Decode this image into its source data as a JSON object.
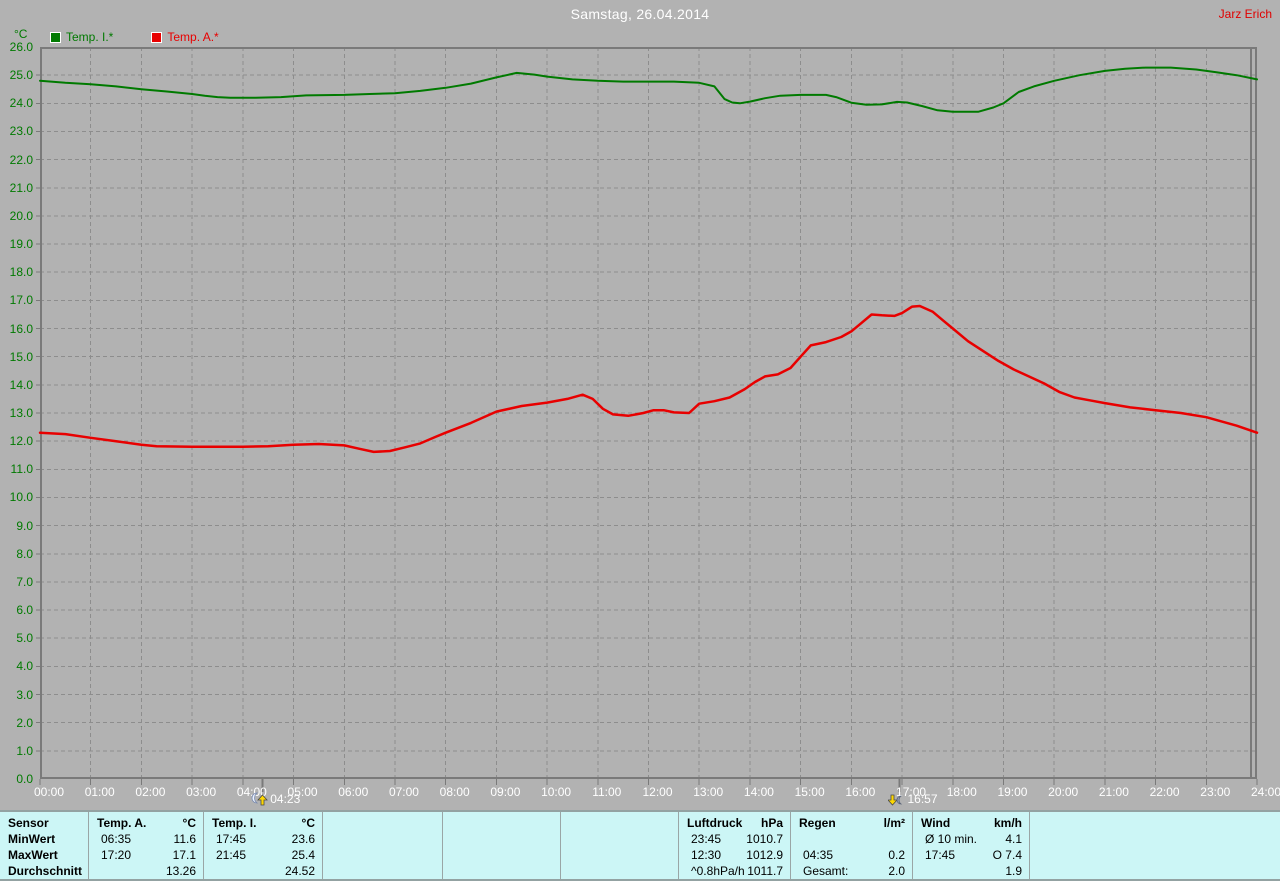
{
  "header": {
    "title": "Samstag, 26.04.2014",
    "owner": "Jarz Erich"
  },
  "colors": {
    "background": "#b2b2b2",
    "table_background": "#ccf6f6",
    "grid": "#8d8d8d",
    "axis_border": "#7a7a7a",
    "title_text": "#ffffff",
    "owner_text": "#e00000",
    "axis_label_green": "#007a00"
  },
  "chart_data": {
    "type": "line",
    "title": "Samstag, 26.04.2014",
    "ylabel": "°C",
    "xlabel": "",
    "ylim": [
      0,
      26
    ],
    "xlim_hours": [
      0,
      24
    ],
    "grid": true,
    "legend_position": "top-left",
    "y_tick_labels": [
      "0.0",
      "1.0",
      "2.0",
      "3.0",
      "4.0",
      "5.0",
      "6.0",
      "7.0",
      "8.0",
      "9.0",
      "10.0",
      "11.0",
      "12.0",
      "13.0",
      "14.0",
      "15.0",
      "16.0",
      "17.0",
      "18.0",
      "19.0",
      "20.0",
      "21.0",
      "22.0",
      "23.0",
      "24.0",
      "25.0",
      "26.0"
    ],
    "x_tick_labels": [
      "00:00",
      "01:00",
      "02:00",
      "03:00",
      "04:00",
      "05:00",
      "06:00",
      "07:00",
      "08:00",
      "09:00",
      "10:00",
      "11:00",
      "12:00",
      "13:00",
      "14:00",
      "15:00",
      "16:00",
      "17:00",
      "18:00",
      "19:00",
      "20:00",
      "21:00",
      "22:00",
      "23:00",
      "24:00"
    ],
    "event_markers": [
      {
        "label": "04:23",
        "hour": 4.383,
        "icon": "moonrise"
      },
      {
        "label": "16:57",
        "hour": 16.95,
        "icon": "moonset"
      }
    ],
    "series": [
      {
        "label": "Temp. I.*",
        "color": "#007a00",
        "points": [
          [
            0,
            24.8
          ],
          [
            0.5,
            24.73
          ],
          [
            1,
            24.68
          ],
          [
            1.5,
            24.6
          ],
          [
            2,
            24.5
          ],
          [
            2.5,
            24.42
          ],
          [
            3,
            24.33
          ],
          [
            3.25,
            24.27
          ],
          [
            3.5,
            24.22
          ],
          [
            3.75,
            24.2
          ],
          [
            4.25,
            24.2
          ],
          [
            4.75,
            24.22
          ],
          [
            5.25,
            24.28
          ],
          [
            6,
            24.3
          ],
          [
            6.5,
            24.33
          ],
          [
            7,
            24.36
          ],
          [
            7.5,
            24.44
          ],
          [
            8,
            24.55
          ],
          [
            8.5,
            24.7
          ],
          [
            9,
            24.92
          ],
          [
            9.4,
            25.08
          ],
          [
            9.75,
            25.02
          ],
          [
            10,
            24.95
          ],
          [
            10.5,
            24.85
          ],
          [
            11,
            24.8
          ],
          [
            11.5,
            24.77
          ],
          [
            12.5,
            24.77
          ],
          [
            13,
            24.73
          ],
          [
            13.3,
            24.6
          ],
          [
            13.5,
            24.15
          ],
          [
            13.65,
            24.03
          ],
          [
            13.8,
            24.0
          ],
          [
            14,
            24.06
          ],
          [
            14.3,
            24.18
          ],
          [
            14.6,
            24.27
          ],
          [
            15,
            24.3
          ],
          [
            15.5,
            24.3
          ],
          [
            15.7,
            24.22
          ],
          [
            16,
            24.02
          ],
          [
            16.3,
            23.95
          ],
          [
            16.6,
            23.96
          ],
          [
            16.9,
            24.05
          ],
          [
            17.1,
            24.03
          ],
          [
            17.4,
            23.9
          ],
          [
            17.7,
            23.75
          ],
          [
            18,
            23.7
          ],
          [
            18.5,
            23.7
          ],
          [
            18.8,
            23.85
          ],
          [
            19,
            24.0
          ],
          [
            19.3,
            24.4
          ],
          [
            19.6,
            24.6
          ],
          [
            20,
            24.8
          ],
          [
            20.5,
            25.0
          ],
          [
            21,
            25.15
          ],
          [
            21.4,
            25.23
          ],
          [
            21.8,
            25.27
          ],
          [
            22.3,
            25.27
          ],
          [
            22.8,
            25.2
          ],
          [
            23.2,
            25.1
          ],
          [
            23.6,
            25.0
          ],
          [
            24,
            24.85
          ]
        ]
      },
      {
        "label": "Temp. A.*",
        "color": "#e80000",
        "points": [
          [
            0,
            12.3
          ],
          [
            0.5,
            12.25
          ],
          [
            1,
            12.12
          ],
          [
            1.5,
            12.0
          ],
          [
            2,
            11.87
          ],
          [
            2.3,
            11.82
          ],
          [
            3,
            11.8
          ],
          [
            4,
            11.8
          ],
          [
            4.5,
            11.82
          ],
          [
            5,
            11.87
          ],
          [
            5.5,
            11.9
          ],
          [
            6,
            11.85
          ],
          [
            6.3,
            11.73
          ],
          [
            6.58,
            11.62
          ],
          [
            6.9,
            11.65
          ],
          [
            7.2,
            11.78
          ],
          [
            7.5,
            11.92
          ],
          [
            7.8,
            12.15
          ],
          [
            8,
            12.3
          ],
          [
            8.5,
            12.65
          ],
          [
            9,
            13.05
          ],
          [
            9.5,
            13.25
          ],
          [
            10,
            13.37
          ],
          [
            10.4,
            13.5
          ],
          [
            10.7,
            13.65
          ],
          [
            10.9,
            13.5
          ],
          [
            11.1,
            13.15
          ],
          [
            11.3,
            12.95
          ],
          [
            11.6,
            12.9
          ],
          [
            11.9,
            13.0
          ],
          [
            12.1,
            13.1
          ],
          [
            12.3,
            13.1
          ],
          [
            12.5,
            13.02
          ],
          [
            12.8,
            13.0
          ],
          [
            13,
            13.33
          ],
          [
            13.3,
            13.42
          ],
          [
            13.6,
            13.55
          ],
          [
            13.9,
            13.85
          ],
          [
            14.1,
            14.1
          ],
          [
            14.3,
            14.3
          ],
          [
            14.55,
            14.37
          ],
          [
            14.8,
            14.6
          ],
          [
            15,
            15.0
          ],
          [
            15.2,
            15.4
          ],
          [
            15.5,
            15.52
          ],
          [
            15.8,
            15.7
          ],
          [
            16,
            15.9
          ],
          [
            16.2,
            16.2
          ],
          [
            16.4,
            16.5
          ],
          [
            16.6,
            16.47
          ],
          [
            16.85,
            16.45
          ],
          [
            17,
            16.55
          ],
          [
            17.2,
            16.78
          ],
          [
            17.35,
            16.8
          ],
          [
            17.6,
            16.6
          ],
          [
            17.8,
            16.3
          ],
          [
            18,
            16.0
          ],
          [
            18.3,
            15.55
          ],
          [
            18.6,
            15.2
          ],
          [
            18.9,
            14.85
          ],
          [
            19.2,
            14.55
          ],
          [
            19.5,
            14.3
          ],
          [
            19.8,
            14.05
          ],
          [
            20.1,
            13.75
          ],
          [
            20.4,
            13.55
          ],
          [
            20.7,
            13.45
          ],
          [
            21,
            13.35
          ],
          [
            21.5,
            13.2
          ],
          [
            22,
            13.1
          ],
          [
            22.5,
            13.0
          ],
          [
            23,
            12.85
          ],
          [
            23.3,
            12.7
          ],
          [
            23.6,
            12.55
          ],
          [
            24,
            12.3
          ]
        ]
      }
    ]
  },
  "table": {
    "row_labels": [
      "Sensor",
      "MinWert",
      "MaxWert",
      "Durchschnitt"
    ],
    "columns": [
      {
        "name": "Temp. A.",
        "unit": "°C",
        "rows": [
          [
            "06:35",
            "11.6"
          ],
          [
            "17:20",
            "17.1"
          ],
          [
            "",
            "13.26"
          ]
        ]
      },
      {
        "name": "Temp. I.",
        "unit": "°C",
        "rows": [
          [
            "17:45",
            "23.6"
          ],
          [
            "21:45",
            "25.4"
          ],
          [
            "",
            "24.52"
          ]
        ]
      },
      {
        "name": "",
        "unit": "",
        "rows": [
          [
            "",
            ""
          ],
          [
            "",
            ""
          ],
          [
            "",
            ""
          ]
        ]
      },
      {
        "name": "",
        "unit": "",
        "rows": [
          [
            "",
            ""
          ],
          [
            "",
            ""
          ],
          [
            "",
            ""
          ]
        ]
      },
      {
        "name": "",
        "unit": "",
        "rows": [
          [
            "",
            ""
          ],
          [
            "",
            ""
          ],
          [
            "",
            ""
          ]
        ]
      },
      {
        "name": "Luftdruck",
        "unit": "hPa",
        "rows": [
          [
            "23:45",
            "1010.7"
          ],
          [
            "12:30",
            "1012.9"
          ],
          [
            "^0.8hPa/h",
            "1011.7"
          ]
        ]
      },
      {
        "name": "Regen",
        "unit": "l/m²",
        "rows": [
          [
            "",
            ""
          ],
          [
            "04:35",
            "0.2"
          ],
          [
            "Gesamt:",
            "2.0"
          ]
        ]
      },
      {
        "name": "Wind",
        "unit": "km/h",
        "rows": [
          [
            "Ø 10 min.",
            "4.1"
          ],
          [
            "17:45",
            "O 7.4"
          ],
          [
            "",
            "1.9"
          ]
        ]
      },
      {
        "name": "",
        "unit": "",
        "rows": [
          [
            "",
            ""
          ],
          [
            "",
            ""
          ],
          [
            "",
            ""
          ]
        ]
      }
    ]
  }
}
